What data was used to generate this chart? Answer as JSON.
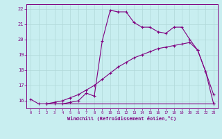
{
  "xlabel": "Windchill (Refroidissement éolien,°C)",
  "bg_color": "#c8eef0",
  "line_color": "#800080",
  "grid_color": "#aadddd",
  "xlim": [
    -0.5,
    23.5
  ],
  "ylim": [
    15.5,
    22.3
  ],
  "yticks": [
    16,
    17,
    18,
    19,
    20,
    21,
    22
  ],
  "xticks": [
    0,
    1,
    2,
    3,
    4,
    5,
    6,
    7,
    8,
    9,
    10,
    11,
    12,
    13,
    14,
    15,
    16,
    17,
    18,
    19,
    20,
    21,
    22,
    23
  ],
  "series1_x": [
    0,
    1,
    2,
    3,
    4,
    5,
    6,
    7,
    8,
    9,
    10,
    11,
    12,
    13,
    14,
    15,
    16,
    17,
    18,
    19,
    20,
    21,
    22,
    23
  ],
  "series1_y": [
    16.1,
    15.8,
    15.8,
    15.8,
    15.8,
    15.9,
    16.0,
    16.5,
    16.3,
    19.9,
    21.9,
    21.8,
    21.8,
    21.1,
    20.8,
    20.8,
    20.5,
    20.4,
    20.8,
    20.8,
    20.0,
    19.3,
    17.9,
    16.4
  ],
  "series2_x": [
    2,
    23
  ],
  "series2_y": [
    15.8,
    15.8
  ],
  "series3_x": [
    2,
    3,
    4,
    5,
    6,
    7,
    8,
    9,
    10,
    11,
    12,
    13,
    14,
    15,
    16,
    17,
    18,
    19,
    20,
    21,
    22,
    23
  ],
  "series3_y": [
    15.8,
    15.9,
    16.0,
    16.2,
    16.4,
    16.7,
    17.0,
    17.4,
    17.8,
    18.2,
    18.5,
    18.8,
    19.0,
    19.2,
    19.4,
    19.5,
    19.6,
    19.7,
    19.8,
    19.3,
    17.9,
    15.8
  ]
}
